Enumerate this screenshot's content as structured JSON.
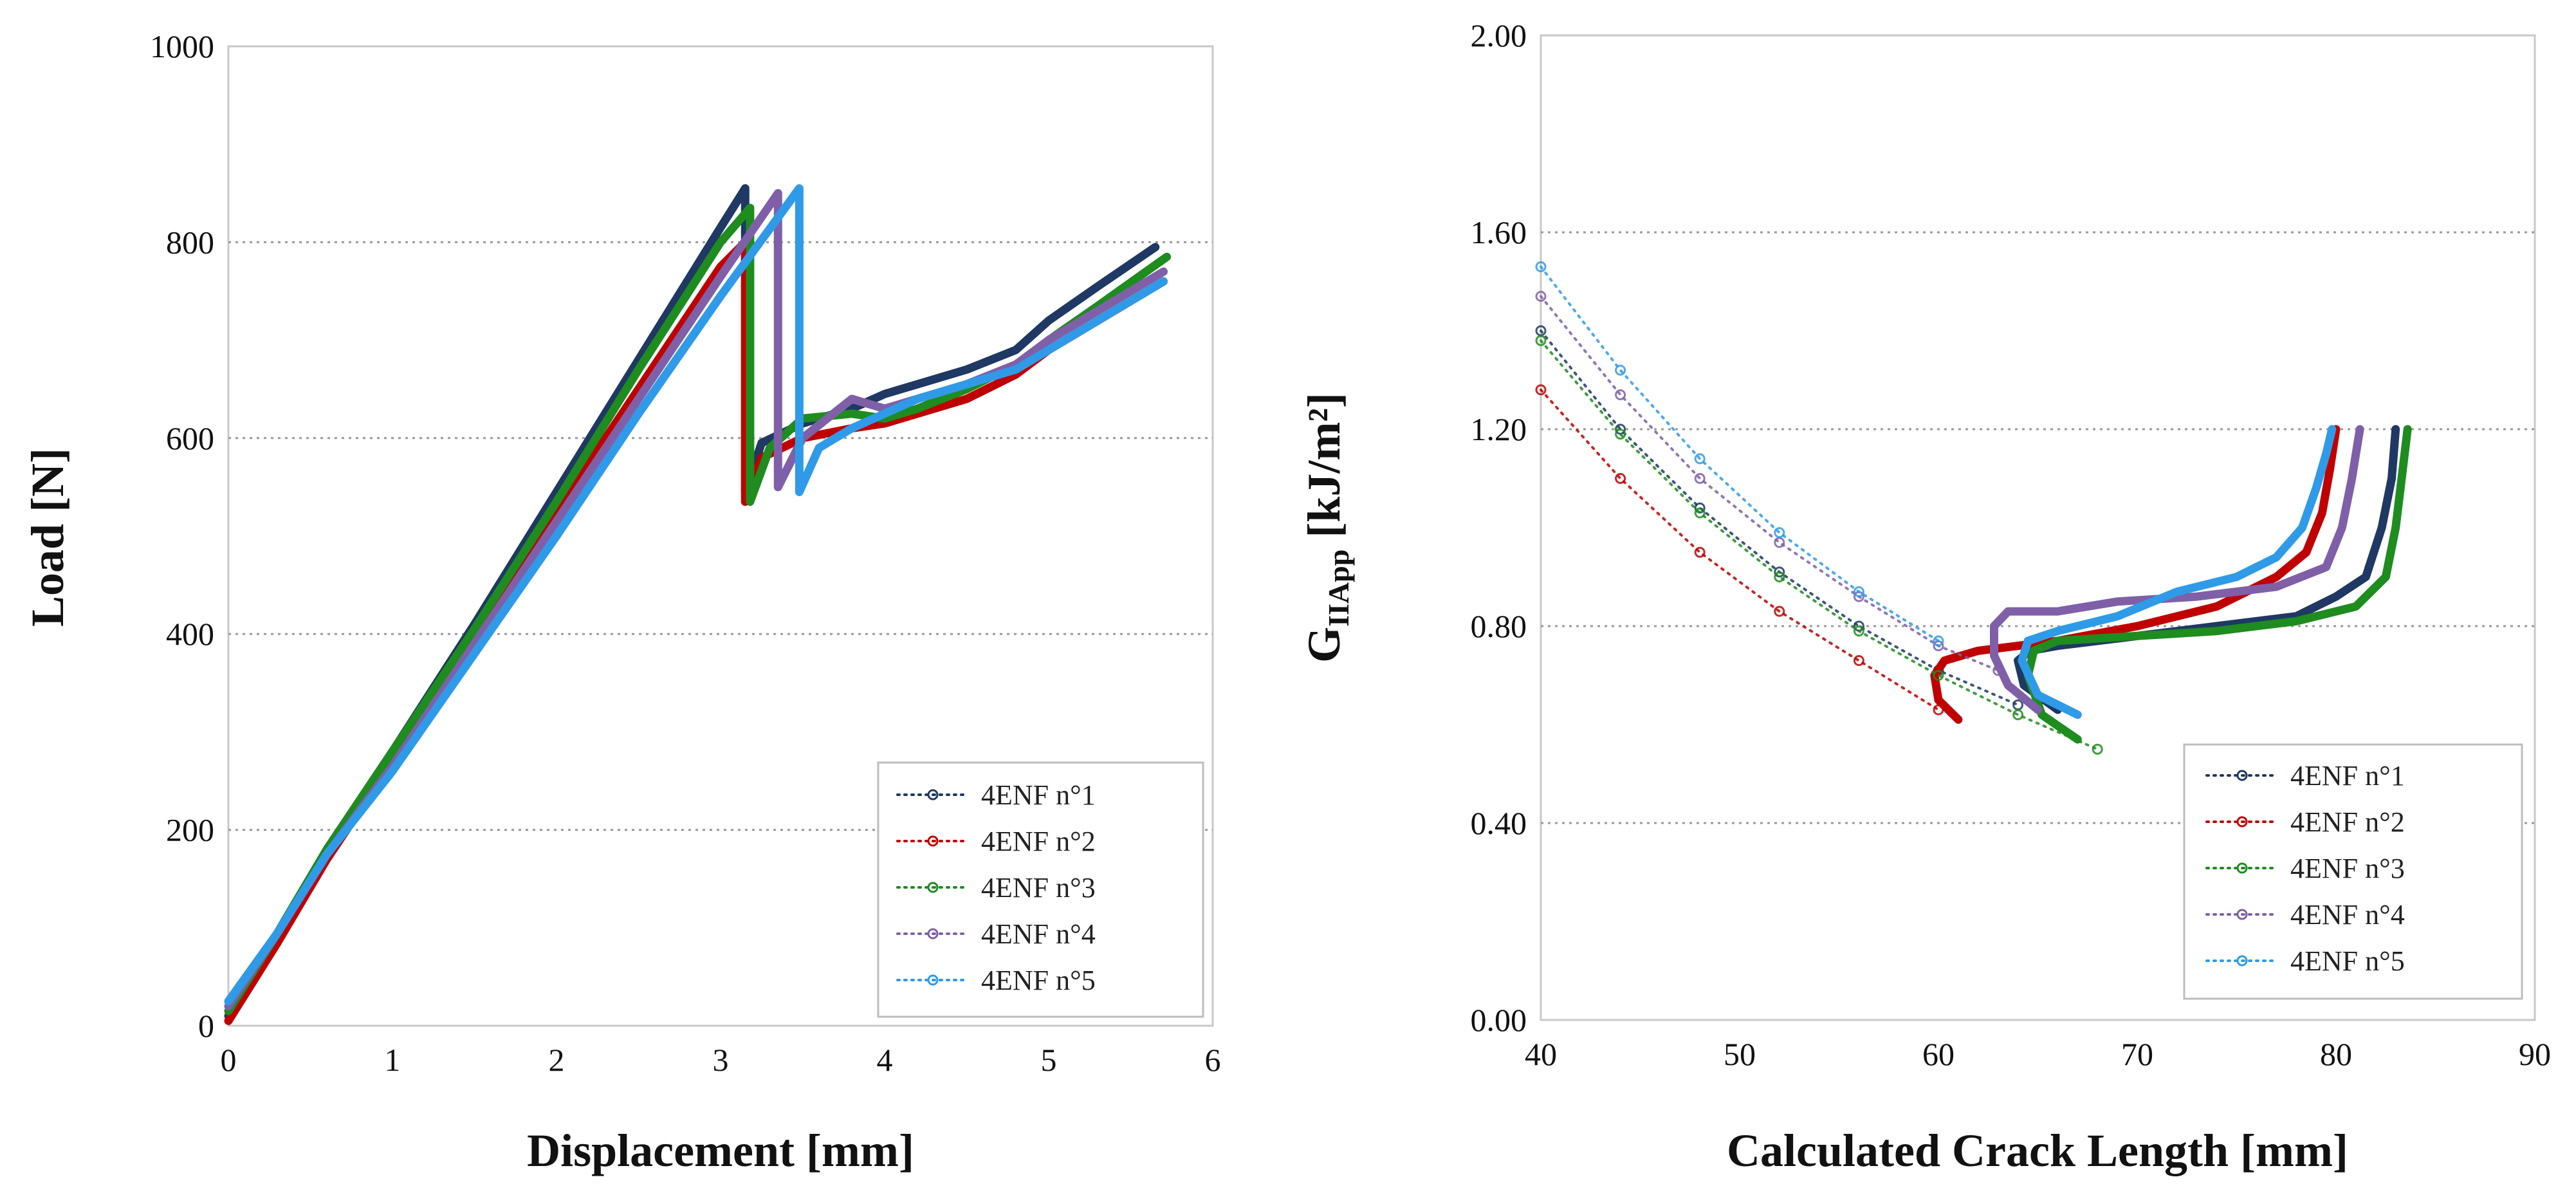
{
  "chart_data": [
    {
      "type": "line",
      "title": "",
      "xlabel": "Displacement [mm]",
      "ylabel": "Load [N]",
      "xlim": [
        0,
        6
      ],
      "ylim": [
        0,
        1000
      ],
      "x_ticks": [
        "0",
        "1",
        "2",
        "3",
        "4",
        "5",
        "6"
      ],
      "y_ticks": [
        "0",
        "200",
        "400",
        "600",
        "800",
        "1000"
      ],
      "grid": "horizontal dotted",
      "legend_position": "bottom-right",
      "series": [
        {
          "name": "4ENF  n°1",
          "color": "#1f3864",
          "x": [
            0,
            0.3,
            0.6,
            1.0,
            1.5,
            2.0,
            2.5,
            3.0,
            3.15,
            3.15,
            3.25,
            3.5,
            3.8,
            4.0,
            4.2,
            4.5,
            4.8,
            5.0,
            5.3,
            5.65
          ],
          "y": [
            10,
            95,
            180,
            280,
            410,
            545,
            680,
            815,
            855,
            545,
            595,
            615,
            630,
            645,
            655,
            670,
            690,
            720,
            755,
            795
          ]
        },
        {
          "name": "4ENF  n°2",
          "color": "#c00000",
          "x": [
            0,
            0.3,
            0.6,
            1.0,
            1.5,
            2.0,
            2.5,
            3.0,
            3.15,
            3.15,
            3.25,
            3.5,
            3.8,
            4.0,
            4.2,
            4.5,
            4.8,
            5.0,
            5.3,
            5.7
          ],
          "y": [
            5,
            85,
            170,
            270,
            395,
            525,
            650,
            775,
            800,
            535,
            580,
            600,
            610,
            615,
            625,
            640,
            665,
            690,
            720,
            760
          ]
        },
        {
          "name": "4ENF  n°3",
          "color": "#1e8c1e",
          "x": [
            0,
            0.3,
            0.6,
            1.0,
            1.5,
            2.0,
            2.5,
            3.0,
            3.18,
            3.18,
            3.3,
            3.5,
            3.8,
            4.0,
            4.2,
            4.5,
            4.8,
            5.0,
            5.3,
            5.72
          ],
          "y": [
            15,
            95,
            180,
            280,
            405,
            535,
            670,
            800,
            835,
            535,
            590,
            620,
            625,
            620,
            630,
            650,
            675,
            700,
            735,
            785
          ]
        },
        {
          "name": "4ENF  n°4",
          "color": "#7f60a8",
          "x": [
            0,
            0.3,
            0.6,
            1.0,
            1.5,
            2.0,
            2.5,
            3.0,
            3.35,
            3.35,
            3.5,
            3.8,
            4.0,
            4.2,
            4.5,
            4.8,
            5.0,
            5.3,
            5.7
          ],
          "y": [
            20,
            95,
            175,
            265,
            390,
            515,
            640,
            765,
            850,
            550,
            600,
            640,
            630,
            640,
            655,
            675,
            700,
            730,
            770
          ]
        },
        {
          "name": "4ENF  n°5",
          "color": "#2f9be8",
          "x": [
            0,
            0.3,
            0.6,
            1.0,
            1.5,
            2.0,
            2.5,
            3.0,
            3.48,
            3.48,
            3.6,
            3.8,
            4.0,
            4.2,
            4.5,
            4.8,
            5.0,
            5.3,
            5.7
          ],
          "y": [
            25,
            95,
            175,
            260,
            380,
            500,
            625,
            745,
            855,
            545,
            590,
            610,
            625,
            640,
            655,
            670,
            690,
            720,
            760
          ]
        }
      ]
    },
    {
      "type": "line",
      "title": "",
      "xlabel": "Calculated Crack Length [mm]",
      "ylabel_main": "G",
      "ylabel_sub": "IIApp",
      "ylabel_unit": " [kJ/m²]",
      "xlim": [
        40,
        90
      ],
      "ylim": [
        0,
        2.0
      ],
      "x_ticks": [
        "40",
        "50",
        "60",
        "70",
        "80",
        "90"
      ],
      "y_ticks": [
        "0.00",
        "0.40",
        "0.80",
        "1.20",
        "1.60",
        "2.00"
      ],
      "grid": "horizontal dotted",
      "legend_position": "bottom-right",
      "series": [
        {
          "name": "4ENF  n°1",
          "color": "#1f3864",
          "dotted_x": [
            40,
            44,
            48,
            52,
            56,
            60,
            64
          ],
          "dotted_y": [
            1.4,
            1.2,
            1.04,
            0.91,
            0.8,
            0.71,
            0.64
          ],
          "x": [
            66.0,
            64.3,
            64.0,
            64.6,
            66.0,
            70.0,
            74.0,
            78.0,
            80.0,
            81.5,
            82.3,
            82.8,
            83.0
          ],
          "y": [
            0.63,
            0.68,
            0.73,
            0.75,
            0.76,
            0.78,
            0.8,
            0.82,
            0.86,
            0.9,
            1.0,
            1.1,
            1.2
          ]
        },
        {
          "name": "4ENF  n°2",
          "color": "#c00000",
          "dotted_x": [
            40,
            44,
            48,
            52,
            56,
            60
          ],
          "dotted_y": [
            1.28,
            1.1,
            0.95,
            0.83,
            0.73,
            0.63
          ],
          "x": [
            61.0,
            60.0,
            59.8,
            60.3,
            62.0,
            66.0,
            70.0,
            74.0,
            77.0,
            78.5,
            79.3,
            79.7,
            80.0
          ],
          "y": [
            0.61,
            0.65,
            0.7,
            0.73,
            0.75,
            0.77,
            0.8,
            0.84,
            0.9,
            0.95,
            1.03,
            1.12,
            1.2
          ]
        },
        {
          "name": "4ENF  n°3",
          "color": "#1e8c1e",
          "dotted_x": [
            40,
            44,
            48,
            52,
            56,
            60,
            64,
            68
          ],
          "dotted_y": [
            1.38,
            1.19,
            1.03,
            0.9,
            0.79,
            0.7,
            0.62,
            0.55
          ],
          "x": [
            67.0,
            65.2,
            64.5,
            64.8,
            66.0,
            70.0,
            74.0,
            78.0,
            81.0,
            82.5,
            83.0,
            83.3,
            83.6
          ],
          "y": [
            0.57,
            0.62,
            0.7,
            0.75,
            0.77,
            0.78,
            0.79,
            0.81,
            0.84,
            0.9,
            1.0,
            1.1,
            1.2
          ]
        },
        {
          "name": "4ENF  n°4",
          "color": "#7f60a8",
          "dotted_x": [
            40,
            44,
            48,
            52,
            56,
            60,
            63
          ],
          "dotted_y": [
            1.47,
            1.27,
            1.1,
            0.97,
            0.86,
            0.76,
            0.71
          ],
          "x": [
            65.0,
            63.5,
            62.8,
            62.8,
            63.5,
            66.0,
            69.0,
            73.0,
            77.0,
            79.5,
            80.3,
            80.8,
            81.2
          ],
          "y": [
            0.63,
            0.68,
            0.74,
            0.8,
            0.83,
            0.83,
            0.85,
            0.86,
            0.88,
            0.92,
            1.0,
            1.1,
            1.2
          ]
        },
        {
          "name": "4ENF  n°5",
          "color": "#2f9be8",
          "dotted_x": [
            40,
            44,
            48,
            52,
            56,
            60
          ],
          "dotted_y": [
            1.53,
            1.32,
            1.14,
            0.99,
            0.87,
            0.77
          ],
          "x": [
            67.0,
            65.0,
            64.2,
            64.5,
            66.0,
            69.0,
            72.0,
            75.0,
            77.0,
            78.3,
            79.0,
            79.5,
            79.8
          ],
          "y": [
            0.62,
            0.66,
            0.73,
            0.77,
            0.79,
            0.82,
            0.87,
            0.9,
            0.94,
            1.0,
            1.08,
            1.15,
            1.2
          ]
        }
      ]
    }
  ]
}
